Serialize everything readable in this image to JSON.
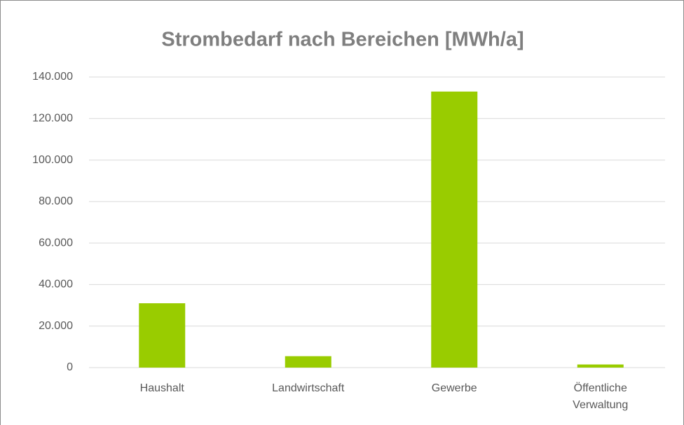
{
  "chart_data": {
    "type": "bar",
    "title": "Strombedarf nach Bereichen [MWh/a]",
    "categories": [
      "Haushalt",
      "Landwirtschaft",
      "Gewerbe",
      "Öffentliche Verwaltung"
    ],
    "values": [
      31000,
      5500,
      133000,
      1500
    ],
    "color": "#99cc00",
    "ylim": [
      0,
      140000
    ],
    "yticks": [
      0,
      {
        "value": 20000,
        "label": "20.000"
      },
      {
        "value": 40000,
        "label": "40.000"
      },
      {
        "value": 60000,
        "label": "60.000"
      },
      {
        "value": 80000,
        "label": "80.000"
      },
      {
        "value": 100000,
        "label": "100.000"
      },
      {
        "value": 120000,
        "label": "120.000"
      },
      {
        "value": 140000,
        "label": "140.000"
      }
    ],
    "grid": true
  }
}
